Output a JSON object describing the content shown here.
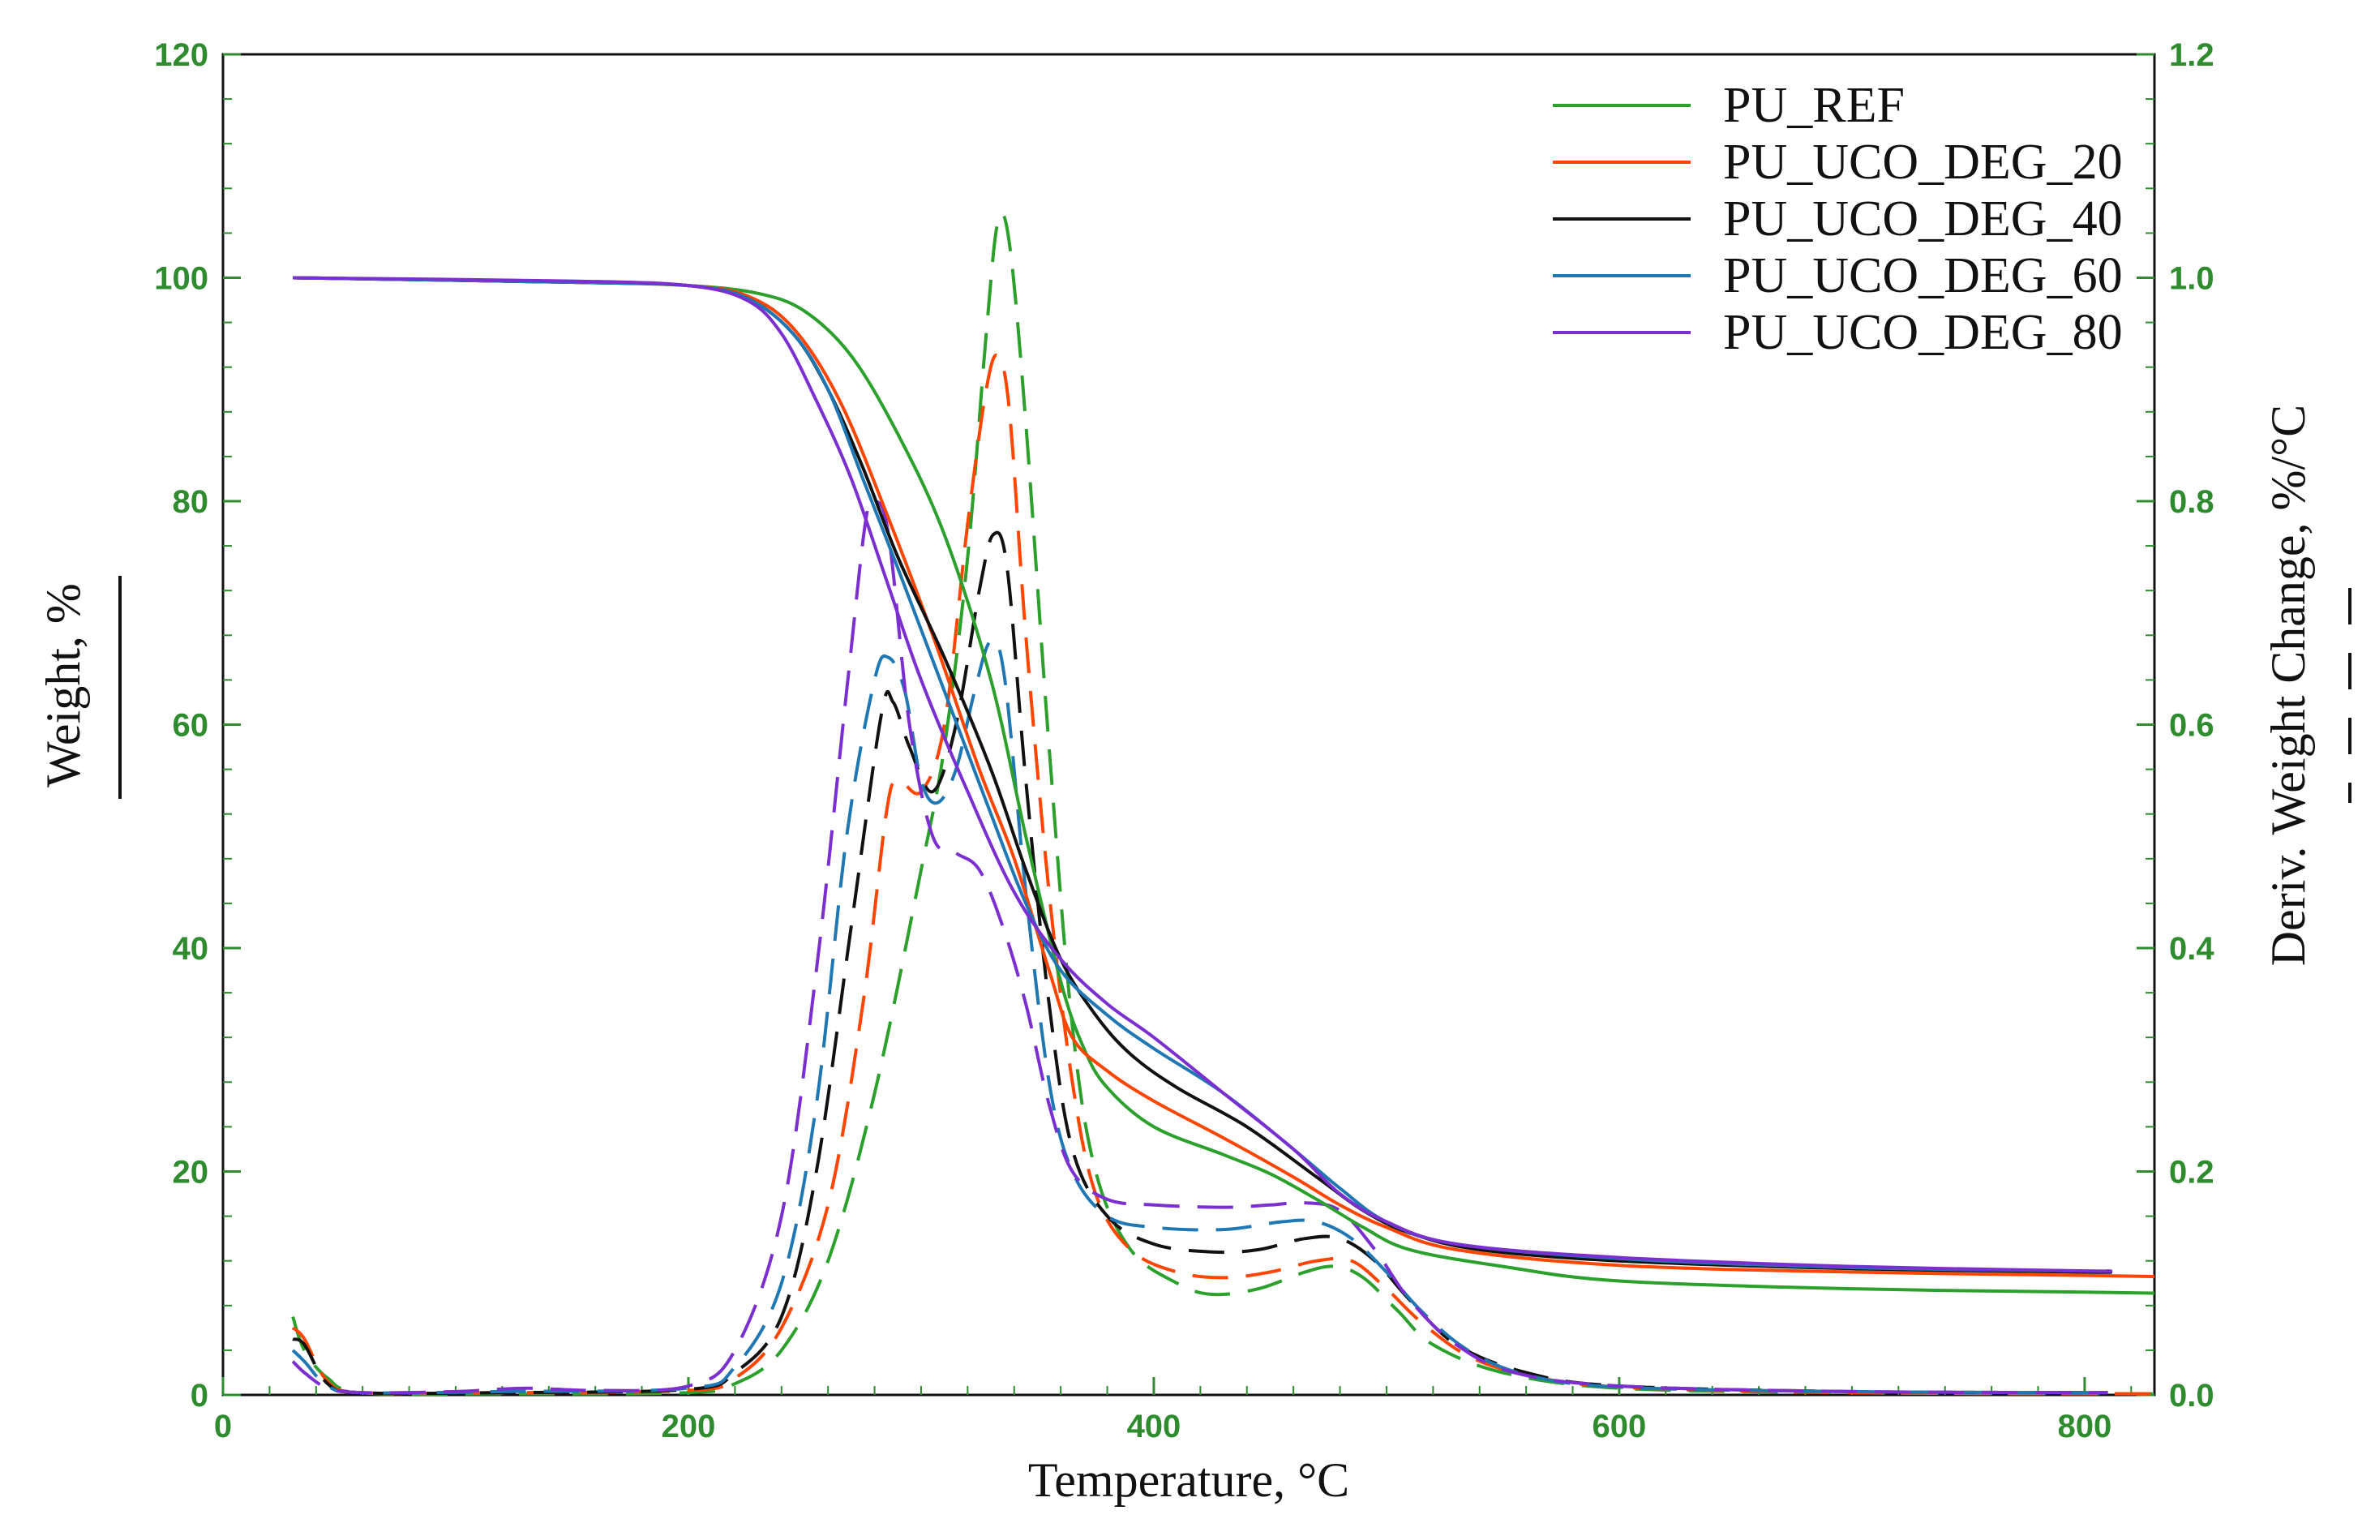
{
  "chart_data": {
    "type": "line",
    "title": "",
    "xlabel": "Temperature, °C",
    "ylabel_left": "Weight, %",
    "ylabel_right": "Deriv. Weight Change, %/°C",
    "xlim": [
      0,
      830
    ],
    "ylim_left": [
      0,
      120
    ],
    "ylim_right": [
      0.0,
      1.2
    ],
    "xticks": [
      "0",
      "200",
      "400",
      "600",
      "800"
    ],
    "yticks_left": [
      "0",
      "20",
      "40",
      "60",
      "80",
      "100",
      "120"
    ],
    "yticks_right": [
      "0.0",
      "0.2",
      "0.4",
      "0.6",
      "0.8",
      "1.0",
      "1.2"
    ],
    "axis_color": "#2e8b2e",
    "legend_position": "top-right",
    "series": [
      {
        "name": "PU_REF",
        "color": "#2ca02c",
        "weight": [
          [
            30,
            100
          ],
          [
            150,
            99.6
          ],
          [
            200,
            99.3
          ],
          [
            230,
            98.6
          ],
          [
            250,
            97
          ],
          [
            270,
            93
          ],
          [
            290,
            86
          ],
          [
            310,
            77
          ],
          [
            330,
            64
          ],
          [
            345,
            50
          ],
          [
            360,
            37
          ],
          [
            370,
            31
          ],
          [
            380,
            27.5
          ],
          [
            400,
            24
          ],
          [
            430,
            21.5
          ],
          [
            450,
            19.8
          ],
          [
            470,
            17.5
          ],
          [
            490,
            15
          ],
          [
            510,
            13
          ],
          [
            550,
            11.5
          ],
          [
            600,
            10.2
          ],
          [
            700,
            9.5
          ],
          [
            800,
            9.2
          ],
          [
            830,
            9.1
          ]
        ],
        "deriv": [
          [
            30,
            0.07
          ],
          [
            35,
            0.04
          ],
          [
            45,
            0.015
          ],
          [
            60,
            0.002
          ],
          [
            120,
            0.001
          ],
          [
            200,
            0.002
          ],
          [
            220,
            0.01
          ],
          [
            240,
            0.04
          ],
          [
            260,
            0.12
          ],
          [
            280,
            0.27
          ],
          [
            300,
            0.47
          ],
          [
            310,
            0.58
          ],
          [
            320,
            0.75
          ],
          [
            328,
            0.95
          ],
          [
            333,
            1.05
          ],
          [
            338,
            1.03
          ],
          [
            345,
            0.87
          ],
          [
            355,
            0.58
          ],
          [
            365,
            0.33
          ],
          [
            375,
            0.2
          ],
          [
            390,
            0.13
          ],
          [
            410,
            0.1
          ],
          [
            425,
            0.09
          ],
          [
            445,
            0.095
          ],
          [
            465,
            0.11
          ],
          [
            478,
            0.115
          ],
          [
            490,
            0.105
          ],
          [
            505,
            0.075
          ],
          [
            520,
            0.045
          ],
          [
            550,
            0.02
          ],
          [
            600,
            0.006
          ],
          [
            700,
            0.002
          ],
          [
            830,
            0.001
          ]
        ]
      },
      {
        "name": "PU_UCO_DEG_20",
        "color": "#ff4500",
        "weight": [
          [
            30,
            100
          ],
          [
            150,
            99.6
          ],
          [
            200,
            99.3
          ],
          [
            225,
            98.4
          ],
          [
            245,
            95.5
          ],
          [
            265,
            89
          ],
          [
            285,
            79
          ],
          [
            305,
            68
          ],
          [
            325,
            56
          ],
          [
            340,
            48
          ],
          [
            355,
            38
          ],
          [
            365,
            32
          ],
          [
            380,
            29
          ],
          [
            400,
            26.3
          ],
          [
            430,
            23
          ],
          [
            460,
            19.5
          ],
          [
            480,
            17
          ],
          [
            500,
            15
          ],
          [
            530,
            13
          ],
          [
            600,
            11.6
          ],
          [
            700,
            11
          ],
          [
            800,
            10.7
          ],
          [
            830,
            10.6
          ]
        ],
        "deriv": [
          [
            30,
            0.06
          ],
          [
            35,
            0.05
          ],
          [
            45,
            0.012
          ],
          [
            60,
            0.002
          ],
          [
            120,
            0.002
          ],
          [
            200,
            0.004
          ],
          [
            220,
            0.015
          ],
          [
            240,
            0.06
          ],
          [
            260,
            0.17
          ],
          [
            275,
            0.35
          ],
          [
            285,
            0.52
          ],
          [
            290,
            0.55
          ],
          [
            300,
            0.54
          ],
          [
            310,
            0.6
          ],
          [
            320,
            0.78
          ],
          [
            328,
            0.9
          ],
          [
            333,
            0.93
          ],
          [
            338,
            0.88
          ],
          [
            345,
            0.68
          ],
          [
            355,
            0.45
          ],
          [
            365,
            0.28
          ],
          [
            375,
            0.18
          ],
          [
            390,
            0.13
          ],
          [
            410,
            0.11
          ],
          [
            430,
            0.105
          ],
          [
            450,
            0.11
          ],
          [
            470,
            0.12
          ],
          [
            485,
            0.12
          ],
          [
            500,
            0.095
          ],
          [
            515,
            0.065
          ],
          [
            535,
            0.035
          ],
          [
            560,
            0.018
          ],
          [
            600,
            0.007
          ],
          [
            700,
            0.002
          ],
          [
            830,
            0.001
          ]
        ]
      },
      {
        "name": "PU_UCO_DEG_40",
        "color": "#111111",
        "weight": [
          [
            30,
            100
          ],
          [
            150,
            99.6
          ],
          [
            200,
            99.3
          ],
          [
            225,
            98.2
          ],
          [
            245,
            95
          ],
          [
            260,
            90
          ],
          [
            275,
            83
          ],
          [
            290,
            75
          ],
          [
            310,
            66
          ],
          [
            330,
            56
          ],
          [
            345,
            47
          ],
          [
            360,
            39
          ],
          [
            375,
            34
          ],
          [
            390,
            30.5
          ],
          [
            410,
            27.5
          ],
          [
            440,
            24
          ],
          [
            470,
            19.5
          ],
          [
            490,
            16.5
          ],
          [
            510,
            14.5
          ],
          [
            540,
            13
          ],
          [
            600,
            12
          ],
          [
            700,
            11.3
          ],
          [
            800,
            11
          ],
          [
            810,
            11
          ]
        ],
        "deriv": [
          [
            30,
            0.05
          ],
          [
            35,
            0.045
          ],
          [
            45,
            0.01
          ],
          [
            60,
            0.002
          ],
          [
            120,
            0.002
          ],
          [
            200,
            0.005
          ],
          [
            220,
            0.02
          ],
          [
            240,
            0.07
          ],
          [
            255,
            0.2
          ],
          [
            270,
            0.42
          ],
          [
            283,
            0.61
          ],
          [
            288,
            0.62
          ],
          [
            295,
            0.58
          ],
          [
            305,
            0.54
          ],
          [
            315,
            0.6
          ],
          [
            325,
            0.72
          ],
          [
            331,
            0.77
          ],
          [
            337,
            0.74
          ],
          [
            345,
            0.55
          ],
          [
            355,
            0.35
          ],
          [
            365,
            0.22
          ],
          [
            380,
            0.16
          ],
          [
            400,
            0.135
          ],
          [
            425,
            0.128
          ],
          [
            445,
            0.13
          ],
          [
            465,
            0.14
          ],
          [
            480,
            0.14
          ],
          [
            495,
            0.12
          ],
          [
            510,
            0.085
          ],
          [
            530,
            0.045
          ],
          [
            560,
            0.02
          ],
          [
            600,
            0.008
          ],
          [
            700,
            0.003
          ],
          [
            810,
            0.002
          ]
        ]
      },
      {
        "name": "PU_UCO_DEG_60",
        "color": "#1f77b4",
        "weight": [
          [
            30,
            100
          ],
          [
            150,
            99.6
          ],
          [
            200,
            99.3
          ],
          [
            225,
            98.2
          ],
          [
            245,
            95
          ],
          [
            260,
            90
          ],
          [
            275,
            82
          ],
          [
            290,
            74
          ],
          [
            310,
            63
          ],
          [
            330,
            52
          ],
          [
            345,
            44
          ],
          [
            360,
            38
          ],
          [
            380,
            34
          ],
          [
            400,
            31
          ],
          [
            430,
            27
          ],
          [
            460,
            22
          ],
          [
            480,
            18.5
          ],
          [
            500,
            15.5
          ],
          [
            530,
            13.5
          ],
          [
            600,
            12.2
          ],
          [
            700,
            11.4
          ],
          [
            800,
            11.1
          ],
          [
            810,
            11.1
          ]
        ],
        "deriv": [
          [
            30,
            0.04
          ],
          [
            35,
            0.03
          ],
          [
            45,
            0.008
          ],
          [
            60,
            0.002
          ],
          [
            120,
            0.003
          ],
          [
            200,
            0.006
          ],
          [
            220,
            0.025
          ],
          [
            240,
            0.1
          ],
          [
            255,
            0.26
          ],
          [
            268,
            0.5
          ],
          [
            280,
            0.64
          ],
          [
            286,
            0.66
          ],
          [
            293,
            0.63
          ],
          [
            300,
            0.55
          ],
          [
            307,
            0.53
          ],
          [
            315,
            0.56
          ],
          [
            323,
            0.63
          ],
          [
            330,
            0.675
          ],
          [
            336,
            0.64
          ],
          [
            345,
            0.45
          ],
          [
            355,
            0.28
          ],
          [
            365,
            0.2
          ],
          [
            380,
            0.16
          ],
          [
            400,
            0.15
          ],
          [
            430,
            0.148
          ],
          [
            455,
            0.155
          ],
          [
            470,
            0.155
          ],
          [
            485,
            0.14
          ],
          [
            500,
            0.11
          ],
          [
            515,
            0.075
          ],
          [
            535,
            0.04
          ],
          [
            560,
            0.018
          ],
          [
            600,
            0.007
          ],
          [
            700,
            0.003
          ],
          [
            810,
            0.002
          ]
        ]
      },
      {
        "name": "PU_UCO_DEG_80",
        "color": "#7b2fd0",
        "weight": [
          [
            30,
            100
          ],
          [
            150,
            99.7
          ],
          [
            200,
            99.3
          ],
          [
            225,
            98
          ],
          [
            240,
            95
          ],
          [
            255,
            89
          ],
          [
            270,
            82
          ],
          [
            285,
            73
          ],
          [
            300,
            64
          ],
          [
            320,
            54
          ],
          [
            340,
            45
          ],
          [
            360,
            39
          ],
          [
            380,
            35
          ],
          [
            400,
            32
          ],
          [
            430,
            27
          ],
          [
            460,
            22
          ],
          [
            480,
            18
          ],
          [
            500,
            15.5
          ],
          [
            530,
            13.5
          ],
          [
            600,
            12.3
          ],
          [
            700,
            11.5
          ],
          [
            800,
            11.1
          ],
          [
            810,
            11.1
          ]
        ],
        "deriv": [
          [
            30,
            0.03
          ],
          [
            35,
            0.02
          ],
          [
            45,
            0.006
          ],
          [
            60,
            0.002
          ],
          [
            100,
            0.003
          ],
          [
            130,
            0.006
          ],
          [
            160,
            0.004
          ],
          [
            200,
            0.008
          ],
          [
            220,
            0.04
          ],
          [
            240,
            0.16
          ],
          [
            255,
            0.38
          ],
          [
            268,
            0.63
          ],
          [
            276,
            0.78
          ],
          [
            280,
            0.8
          ],
          [
            286,
            0.77
          ],
          [
            295,
            0.6
          ],
          [
            305,
            0.5
          ],
          [
            315,
            0.485
          ],
          [
            325,
            0.47
          ],
          [
            335,
            0.42
          ],
          [
            345,
            0.35
          ],
          [
            355,
            0.26
          ],
          [
            365,
            0.2
          ],
          [
            380,
            0.175
          ],
          [
            400,
            0.17
          ],
          [
            430,
            0.168
          ],
          [
            450,
            0.17
          ],
          [
            465,
            0.172
          ],
          [
            480,
            0.165
          ],
          [
            495,
            0.13
          ],
          [
            510,
            0.085
          ],
          [
            530,
            0.045
          ],
          [
            555,
            0.02
          ],
          [
            600,
            0.008
          ],
          [
            700,
            0.003
          ],
          [
            810,
            0.002
          ]
        ]
      }
    ]
  }
}
